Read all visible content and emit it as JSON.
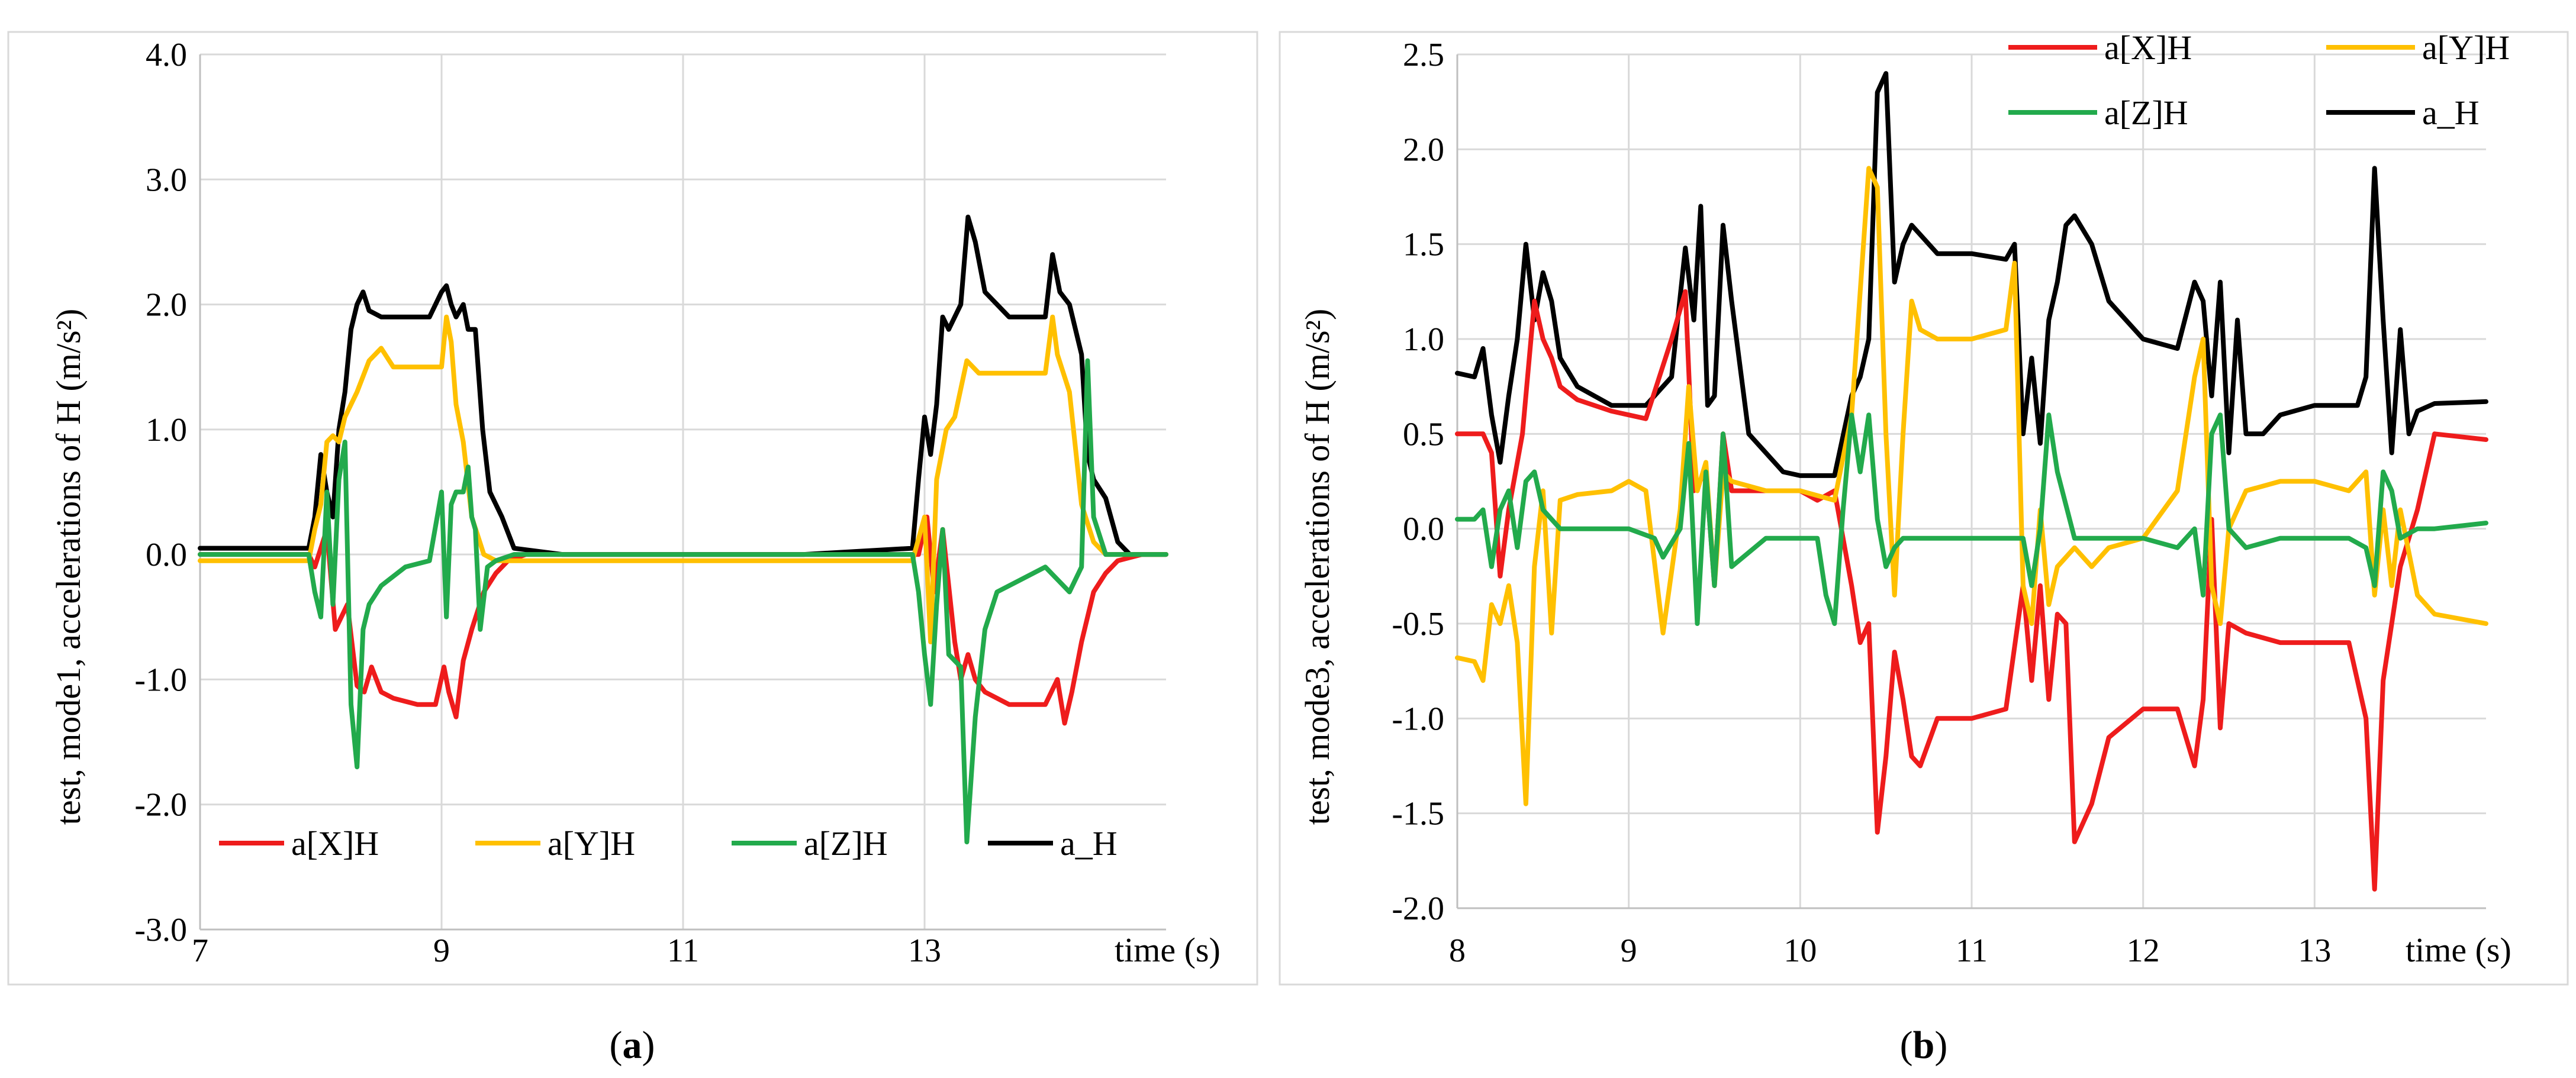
{
  "captions": {
    "a_open": "(",
    "a_letter": "a",
    "a_close": ")",
    "b_open": "(",
    "b_letter": "b",
    "b_close": ")"
  },
  "chart_data": [
    {
      "type": "line",
      "panel": "a",
      "title": "",
      "xlabel": "time (s)",
      "ylabel": "test, mode1, accelerations of H (m/s²)",
      "xlim": [
        7,
        15
      ],
      "ylim": [
        -3.0,
        4.0
      ],
      "xticks": [
        7,
        9,
        11,
        13
      ],
      "xtick_labels": [
        "7",
        "9",
        "11",
        "13"
      ],
      "yticks": [
        -3.0,
        -2.0,
        -1.0,
        0.0,
        1.0,
        2.0,
        3.0,
        4.0
      ],
      "ytick_labels": [
        "-3.0",
        "-2.0",
        "-1.0",
        "0.0",
        "1.0",
        "2.0",
        "3.0",
        "4.0"
      ],
      "grid": true,
      "legend_position": "bottom",
      "series": [
        {
          "name": "a[X]H",
          "color": "#ee1c1c",
          "x": [
            7.0,
            7.9,
            7.95,
            8.05,
            8.12,
            8.22,
            8.3,
            8.36,
            8.42,
            8.5,
            8.6,
            8.8,
            8.95,
            9.02,
            9.06,
            9.12,
            9.18,
            9.25,
            9.35,
            9.45,
            9.55,
            9.7,
            10,
            11,
            12,
            12.5,
            12.95,
            13.02,
            13.08,
            13.15,
            13.25,
            13.3,
            13.36,
            13.42,
            13.5,
            13.7,
            14.0,
            14.1,
            14.16,
            14.22,
            14.3,
            14.4,
            14.5,
            14.6,
            14.8,
            15.0
          ],
          "y": [
            0.0,
            0.0,
            -0.1,
            0.2,
            -0.6,
            -0.4,
            -1.05,
            -1.1,
            -0.9,
            -1.1,
            -1.15,
            -1.2,
            -1.2,
            -0.9,
            -1.1,
            -1.3,
            -0.85,
            -0.6,
            -0.3,
            -0.15,
            -0.05,
            0.0,
            0.0,
            0.0,
            0.0,
            0.0,
            0.0,
            0.3,
            -0.3,
            0.2,
            -0.7,
            -1.0,
            -0.8,
            -1.0,
            -1.1,
            -1.2,
            -1.2,
            -1.0,
            -1.35,
            -1.1,
            -0.7,
            -0.3,
            -0.15,
            -0.05,
            0.0,
            0.0
          ]
        },
        {
          "name": "a[Y]H",
          "color": "#ffc000",
          "x": [
            7.0,
            7.9,
            7.95,
            8.0,
            8.05,
            8.1,
            8.15,
            8.2,
            8.3,
            8.4,
            8.5,
            8.6,
            8.7,
            8.8,
            8.9,
            9.0,
            9.04,
            9.08,
            9.12,
            9.18,
            9.25,
            9.35,
            9.45,
            9.6,
            10,
            12,
            12.9,
            13.0,
            13.05,
            13.1,
            13.18,
            13.25,
            13.35,
            13.45,
            13.6,
            13.8,
            14.0,
            14.06,
            14.1,
            14.15,
            14.2,
            14.3,
            14.4,
            14.5,
            14.7,
            15.0
          ],
          "y": [
            -0.05,
            -0.05,
            0.2,
            0.4,
            0.9,
            0.95,
            0.9,
            1.1,
            1.3,
            1.55,
            1.65,
            1.5,
            1.5,
            1.5,
            1.5,
            1.5,
            1.9,
            1.7,
            1.2,
            0.9,
            0.3,
            0.0,
            -0.05,
            -0.05,
            -0.05,
            -0.05,
            -0.05,
            0.3,
            -0.7,
            0.6,
            1.0,
            1.1,
            1.55,
            1.45,
            1.45,
            1.45,
            1.45,
            1.9,
            1.6,
            1.45,
            1.3,
            0.4,
            0.1,
            0.0,
            0.0,
            0.0
          ]
        },
        {
          "name": "a[Z]H",
          "color": "#22aa4c",
          "x": [
            7.0,
            7.9,
            7.95,
            8.0,
            8.05,
            8.1,
            8.15,
            8.2,
            8.25,
            8.3,
            8.35,
            8.4,
            8.5,
            8.7,
            8.9,
            9.0,
            9.04,
            9.08,
            9.12,
            9.18,
            9.22,
            9.25,
            9.28,
            9.32,
            9.38,
            9.45,
            9.6,
            10,
            12,
            12.9,
            12.95,
            13.0,
            13.05,
            13.1,
            13.15,
            13.2,
            13.3,
            13.35,
            13.42,
            13.5,
            13.6,
            13.8,
            14.0,
            14.1,
            14.2,
            14.3,
            14.35,
            14.4,
            14.5,
            14.7,
            15.0
          ],
          "y": [
            0.0,
            0.0,
            -0.3,
            -0.5,
            0.5,
            -0.4,
            0.6,
            0.9,
            -1.2,
            -1.7,
            -0.6,
            -0.4,
            -0.25,
            -0.1,
            -0.05,
            0.5,
            -0.5,
            0.4,
            0.5,
            0.5,
            0.7,
            0.3,
            0.2,
            -0.6,
            -0.1,
            -0.05,
            0.0,
            0.0,
            0.0,
            0.0,
            -0.3,
            -0.8,
            -1.2,
            -0.4,
            0.2,
            -0.8,
            -0.9,
            -2.3,
            -1.3,
            -0.6,
            -0.3,
            -0.2,
            -0.1,
            -0.2,
            -0.3,
            -0.1,
            1.55,
            0.3,
            0.0,
            0.0,
            0.0
          ]
        },
        {
          "name": "a_H",
          "color": "#000000",
          "x": [
            7.0,
            7.9,
            7.95,
            8.0,
            8.05,
            8.1,
            8.15,
            8.2,
            8.25,
            8.3,
            8.35,
            8.4,
            8.5,
            8.7,
            8.9,
            9.0,
            9.04,
            9.08,
            9.12,
            9.18,
            9.22,
            9.28,
            9.34,
            9.4,
            9.5,
            9.6,
            10,
            12,
            12.9,
            12.95,
            13.0,
            13.05,
            13.1,
            13.15,
            13.2,
            13.3,
            13.36,
            13.42,
            13.5,
            13.7,
            14.0,
            14.06,
            14.12,
            14.2,
            14.3,
            14.35,
            14.4,
            14.5,
            14.6,
            14.7,
            15.0
          ],
          "y": [
            0.05,
            0.05,
            0.3,
            0.8,
            0.5,
            0.3,
            1.0,
            1.3,
            1.8,
            2.0,
            2.1,
            1.95,
            1.9,
            1.9,
            1.9,
            2.1,
            2.15,
            2.0,
            1.9,
            2.0,
            1.8,
            1.8,
            1.0,
            0.5,
            0.3,
            0.05,
            0.0,
            0.0,
            0.05,
            0.6,
            1.1,
            0.8,
            1.2,
            1.9,
            1.8,
            2.0,
            2.7,
            2.5,
            2.1,
            1.9,
            1.9,
            2.4,
            2.1,
            2.0,
            1.6,
            0.8,
            0.6,
            0.45,
            0.1,
            0.0,
            0.0
          ]
        }
      ]
    },
    {
      "type": "line",
      "panel": "b",
      "title": "",
      "xlabel": "time (s)",
      "ylabel": "test, mode3, accelerations of H (m/s²)",
      "xlim": [
        8,
        14
      ],
      "ylim": [
        -2.0,
        2.5
      ],
      "xticks": [
        8,
        9,
        10,
        11,
        12,
        13
      ],
      "xtick_labels": [
        "8",
        "9",
        "10",
        "11",
        "12",
        "13"
      ],
      "yticks": [
        -2.0,
        -1.5,
        -1.0,
        -0.5,
        0.0,
        0.5,
        1.0,
        1.5,
        2.0,
        2.5
      ],
      "ytick_labels": [
        "-2.0",
        "-1.5",
        "-1.0",
        "-0.5",
        "0.0",
        "0.5",
        "1.0",
        "1.5",
        "2.0",
        "2.5"
      ],
      "grid": true,
      "legend_position": "top-right",
      "series": [
        {
          "name": "a[X]H",
          "color": "#ee1c1c",
          "x": [
            8.0,
            8.15,
            8.2,
            8.25,
            8.3,
            8.38,
            8.45,
            8.5,
            8.55,
            8.6,
            8.7,
            8.9,
            9.0,
            9.1,
            9.25,
            9.33,
            9.38,
            9.45,
            9.5,
            9.55,
            9.6,
            9.7,
            9.9,
            10.0,
            10.1,
            10.2,
            10.3,
            10.35,
            10.4,
            10.45,
            10.5,
            10.55,
            10.6,
            10.65,
            10.7,
            10.8,
            11.0,
            11.2,
            11.3,
            11.35,
            11.4,
            11.45,
            11.5,
            11.55,
            11.6,
            11.7,
            11.8,
            12.0,
            12.2,
            12.3,
            12.35,
            12.4,
            12.45,
            12.5,
            12.6,
            12.8,
            13.0,
            13.2,
            13.3,
            13.35,
            13.4,
            13.5,
            13.6,
            13.7,
            14.0
          ],
          "y": [
            0.5,
            0.5,
            0.4,
            -0.25,
            0.1,
            0.5,
            1.2,
            1.0,
            0.9,
            0.75,
            0.68,
            0.62,
            0.6,
            0.58,
            1.0,
            1.25,
            0.2,
            0.3,
            -0.3,
            0.5,
            0.2,
            0.2,
            0.2,
            0.2,
            0.15,
            0.2,
            -0.3,
            -0.6,
            -0.5,
            -1.6,
            -1.2,
            -0.65,
            -0.9,
            -1.2,
            -1.25,
            -1.0,
            -1.0,
            -0.95,
            -0.3,
            -0.8,
            -0.3,
            -0.9,
            -0.45,
            -0.5,
            -1.65,
            -1.45,
            -1.1,
            -0.95,
            -0.95,
            -1.25,
            -0.9,
            0.05,
            -1.05,
            -0.5,
            -0.55,
            -0.6,
            -0.6,
            -0.6,
            -1.0,
            -1.9,
            -0.8,
            -0.2,
            0.1,
            0.5,
            0.47
          ]
        },
        {
          "name": "a[Y]H",
          "color": "#ffc000",
          "x": [
            8.0,
            8.1,
            8.15,
            8.2,
            8.25,
            8.3,
            8.35,
            8.4,
            8.45,
            8.5,
            8.55,
            8.6,
            8.7,
            8.9,
            9.0,
            9.1,
            9.2,
            9.3,
            9.35,
            9.4,
            9.45,
            9.5,
            9.55,
            9.6,
            9.8,
            10.0,
            10.2,
            10.3,
            10.4,
            10.45,
            10.5,
            10.55,
            10.6,
            10.65,
            10.7,
            10.8,
            11.0,
            11.2,
            11.25,
            11.3,
            11.35,
            11.4,
            11.45,
            11.5,
            11.6,
            11.7,
            11.8,
            12.0,
            12.2,
            12.3,
            12.35,
            12.4,
            12.45,
            12.5,
            12.6,
            12.8,
            13.0,
            13.2,
            13.3,
            13.35,
            13.4,
            13.45,
            13.5,
            13.6,
            13.7,
            14.0
          ],
          "y": [
            -0.68,
            -0.7,
            -0.8,
            -0.4,
            -0.5,
            -0.3,
            -0.6,
            -1.45,
            -0.2,
            0.2,
            -0.55,
            0.15,
            0.18,
            0.2,
            0.25,
            0.2,
            -0.55,
            0.1,
            0.75,
            0.2,
            0.35,
            -0.3,
            0.3,
            0.25,
            0.2,
            0.2,
            0.15,
            0.6,
            1.9,
            1.8,
            0.5,
            -0.35,
            0.5,
            1.2,
            1.05,
            1.0,
            1.0,
            1.05,
            1.4,
            -0.3,
            -0.5,
            0.1,
            -0.4,
            -0.2,
            -0.1,
            -0.2,
            -0.1,
            -0.05,
            0.2,
            0.8,
            1.0,
            -0.3,
            -0.5,
            0.0,
            0.2,
            0.25,
            0.25,
            0.2,
            0.3,
            -0.35,
            0.1,
            -0.3,
            0.1,
            -0.35,
            -0.45,
            -0.5
          ]
        },
        {
          "name": "a[Z]H",
          "color": "#22aa4c",
          "x": [
            8.0,
            8.1,
            8.15,
            8.2,
            8.25,
            8.3,
            8.35,
            8.4,
            8.45,
            8.5,
            8.6,
            8.8,
            9.0,
            9.15,
            9.2,
            9.3,
            9.35,
            9.4,
            9.45,
            9.5,
            9.55,
            9.6,
            9.8,
            10.0,
            10.1,
            10.15,
            10.2,
            10.25,
            10.3,
            10.35,
            10.4,
            10.45,
            10.5,
            10.55,
            10.6,
            10.8,
            11.0,
            11.2,
            11.3,
            11.35,
            11.4,
            11.45,
            11.5,
            11.6,
            11.8,
            12.0,
            12.2,
            12.3,
            12.35,
            12.4,
            12.45,
            12.5,
            12.6,
            12.8,
            13.0,
            13.2,
            13.3,
            13.35,
            13.4,
            13.45,
            13.5,
            13.6,
            13.7,
            14.0
          ],
          "y": [
            0.05,
            0.05,
            0.1,
            -0.2,
            0.1,
            0.2,
            -0.1,
            0.25,
            0.3,
            0.1,
            0.0,
            0.0,
            0.0,
            -0.05,
            -0.15,
            0.0,
            0.45,
            -0.5,
            0.3,
            -0.3,
            0.5,
            -0.2,
            -0.05,
            -0.05,
            -0.05,
            -0.35,
            -0.5,
            0.1,
            0.6,
            0.3,
            0.6,
            0.05,
            -0.2,
            -0.1,
            -0.05,
            -0.05,
            -0.05,
            -0.05,
            -0.05,
            -0.3,
            0.0,
            0.6,
            0.3,
            -0.05,
            -0.05,
            -0.05,
            -0.1,
            0.0,
            -0.35,
            0.5,
            0.6,
            0.0,
            -0.1,
            -0.05,
            -0.05,
            -0.05,
            -0.1,
            -0.3,
            0.3,
            0.2,
            -0.05,
            0.0,
            0.0,
            0.03
          ]
        },
        {
          "name": "a_H",
          "color": "#000000",
          "x": [
            8.0,
            8.1,
            8.15,
            8.2,
            8.25,
            8.3,
            8.35,
            8.4,
            8.45,
            8.5,
            8.55,
            8.6,
            8.7,
            8.9,
            9.0,
            9.1,
            9.25,
            9.33,
            9.38,
            9.42,
            9.46,
            9.5,
            9.55,
            9.6,
            9.7,
            9.9,
            10.0,
            10.1,
            10.2,
            10.3,
            10.35,
            10.4,
            10.45,
            10.5,
            10.55,
            10.6,
            10.65,
            10.7,
            10.8,
            11.0,
            11.2,
            11.25,
            11.3,
            11.35,
            11.4,
            11.45,
            11.5,
            11.55,
            11.6,
            11.7,
            11.8,
            12.0,
            12.2,
            12.3,
            12.35,
            12.4,
            12.45,
            12.5,
            12.55,
            12.6,
            12.7,
            12.8,
            13.0,
            13.2,
            13.25,
            13.3,
            13.35,
            13.4,
            13.45,
            13.5,
            13.55,
            13.6,
            13.7,
            14.0
          ],
          "y": [
            0.82,
            0.8,
            0.95,
            0.6,
            0.35,
            0.7,
            1.0,
            1.5,
            1.1,
            1.35,
            1.2,
            0.9,
            0.75,
            0.65,
            0.65,
            0.65,
            0.8,
            1.48,
            1.1,
            1.7,
            0.65,
            0.7,
            1.6,
            1.2,
            0.5,
            0.3,
            0.28,
            0.28,
            0.28,
            0.7,
            0.8,
            1.0,
            2.3,
            2.4,
            1.3,
            1.5,
            1.6,
            1.55,
            1.45,
            1.45,
            1.42,
            1.5,
            0.5,
            0.9,
            0.45,
            1.1,
            1.3,
            1.6,
            1.65,
            1.5,
            1.2,
            1.0,
            0.95,
            1.3,
            1.2,
            0.7,
            1.3,
            0.4,
            1.1,
            0.5,
            0.5,
            0.6,
            0.65,
            0.65,
            0.65,
            0.8,
            1.9,
            1.1,
            0.4,
            1.05,
            0.5,
            0.62,
            0.66,
            0.67
          ]
        }
      ]
    }
  ]
}
